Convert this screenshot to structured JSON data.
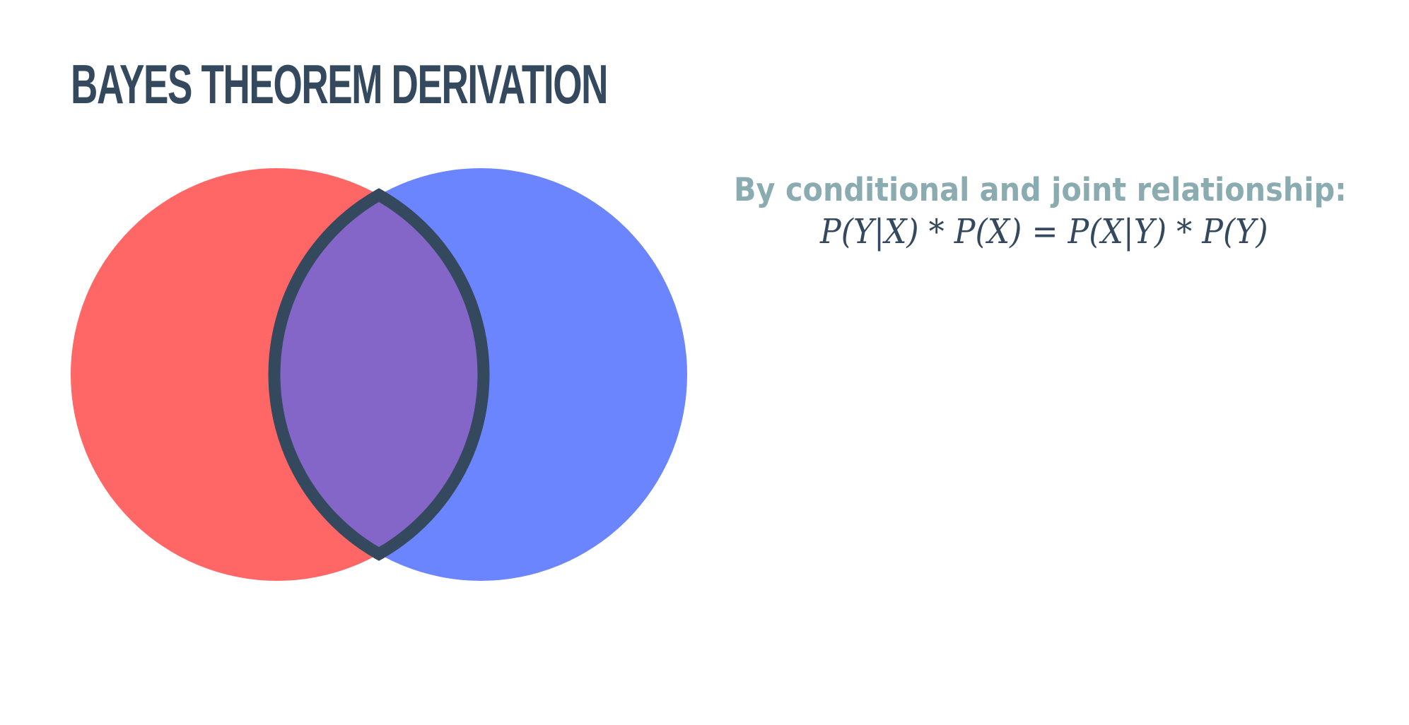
{
  "slide": {
    "title": "BAYES THEOREM DERIVATION",
    "caption": "By conditional and joint relationship:",
    "formula": "P(Y|X) * P(X) = P(X|Y) * P(Y)"
  },
  "venn": {
    "left_circle_color": "#ff6666",
    "right_circle_color": "#6a85ff",
    "intersection_color": "#8466c8",
    "outline_color": "#34495e"
  },
  "colors": {
    "title": "#34495e",
    "caption": "#8aabb0",
    "formula": "#34495e",
    "background": "#ffffff"
  }
}
